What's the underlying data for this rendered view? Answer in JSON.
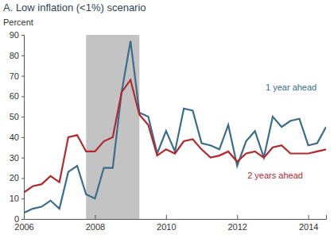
{
  "chart_data": {
    "type": "line",
    "title": "A. Low inflation (<1%) scenario",
    "y_label": "Percent",
    "x": [
      2006,
      2006.25,
      2006.5,
      2006.75,
      2007,
      2007.25,
      2007.5,
      2007.75,
      2008,
      2008.25,
      2008.5,
      2008.75,
      2009,
      2009.25,
      2009.5,
      2009.75,
      2010,
      2010.25,
      2010.5,
      2010.75,
      2011,
      2011.25,
      2011.5,
      2011.75,
      2012,
      2012.25,
      2012.5,
      2012.75,
      2013,
      2013.25,
      2013.5,
      2013.75,
      2014,
      2014.25,
      2014.5
    ],
    "series": [
      {
        "name": "1 year ahead",
        "color": "#3a6d8c",
        "values": [
          3,
          5,
          6,
          9,
          5,
          23,
          26,
          12,
          10,
          25,
          25,
          62,
          87,
          52,
          50,
          32,
          43,
          33,
          54,
          53,
          37,
          36,
          34,
          46,
          26,
          38,
          43,
          30,
          50,
          45,
          48,
          49,
          36,
          37,
          45
        ]
      },
      {
        "name": "2 years ahead",
        "color": "#b3282d",
        "values": [
          13,
          16,
          17,
          21,
          18,
          40,
          41,
          33,
          33,
          38,
          40,
          62,
          68,
          51,
          46,
          31,
          34,
          32,
          38,
          39,
          34,
          30,
          31,
          33,
          28,
          32,
          33,
          30,
          35,
          36,
          32,
          32,
          32,
          33,
          34
        ]
      }
    ],
    "shaded_regions": [
      [
        2007.75,
        2009.25
      ]
    ],
    "xlim": [
      2006,
      2014.5
    ],
    "xticks": [
      2006,
      2008,
      2010,
      2012,
      2014
    ],
    "ylim": [
      0,
      90
    ],
    "yticks": [
      0,
      10,
      20,
      30,
      40,
      50,
      60,
      70,
      80,
      90
    ],
    "grid": false
  }
}
